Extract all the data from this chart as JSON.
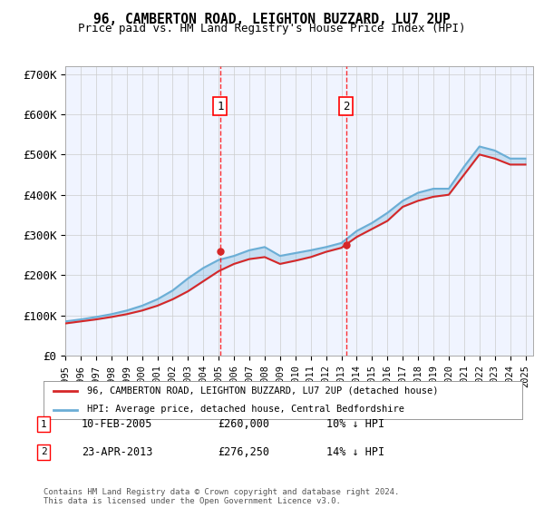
{
  "title": "96, CAMBERTON ROAD, LEIGHTON BUZZARD, LU7 2UP",
  "subtitle": "Price paid vs. HM Land Registry's House Price Index (HPI)",
  "ylabel_ticks": [
    "£0",
    "£100K",
    "£200K",
    "£300K",
    "£400K",
    "£500K",
    "£600K",
    "£700K"
  ],
  "ytick_values": [
    0,
    100000,
    200000,
    300000,
    400000,
    500000,
    600000,
    700000
  ],
  "ylim": [
    0,
    720000
  ],
  "xlim_start": 1995.0,
  "xlim_end": 2025.5,
  "hpi_color": "#6baed6",
  "price_color": "#d62728",
  "marker1_x": 2005.1,
  "marker1_y": 260000,
  "marker2_x": 2013.3,
  "marker2_y": 276250,
  "annotation1_label": "1",
  "annotation2_label": "2",
  "legend_label1": "96, CAMBERTON ROAD, LEIGHTON BUZZARD, LU7 2UP (detached house)",
  "legend_label2": "HPI: Average price, detached house, Central Bedfordshire",
  "table_rows": [
    [
      "1",
      "10-FEB-2005",
      "£260,000",
      "10% ↓ HPI"
    ],
    [
      "2",
      "23-APR-2013",
      "£276,250",
      "14% ↓ HPI"
    ]
  ],
  "footnote": "Contains HM Land Registry data © Crown copyright and database right 2024.\nThis data is licensed under the Open Government Licence v3.0.",
  "background_color": "#ffffff",
  "plot_bg_color": "#f0f4ff",
  "grid_color": "#cccccc",
  "x_years": [
    1995,
    1996,
    1997,
    1998,
    1999,
    2000,
    2001,
    2002,
    2003,
    2004,
    2005,
    2006,
    2007,
    2008,
    2009,
    2010,
    2011,
    2012,
    2013,
    2014,
    2015,
    2016,
    2017,
    2018,
    2019,
    2020,
    2021,
    2022,
    2023,
    2024,
    2025
  ],
  "hpi_values": [
    85000,
    90000,
    96000,
    103000,
    112000,
    124000,
    140000,
    162000,
    192000,
    218000,
    238000,
    248000,
    262000,
    270000,
    248000,
    255000,
    262000,
    270000,
    280000,
    310000,
    330000,
    355000,
    385000,
    405000,
    415000,
    415000,
    470000,
    520000,
    510000,
    490000,
    490000
  ],
  "price_values": [
    80000,
    85000,
    90000,
    96000,
    103000,
    112000,
    124000,
    140000,
    160000,
    185000,
    210000,
    228000,
    240000,
    245000,
    228000,
    236000,
    245000,
    258000,
    268000,
    295000,
    315000,
    335000,
    370000,
    385000,
    395000,
    400000,
    450000,
    500000,
    490000,
    475000,
    475000
  ]
}
